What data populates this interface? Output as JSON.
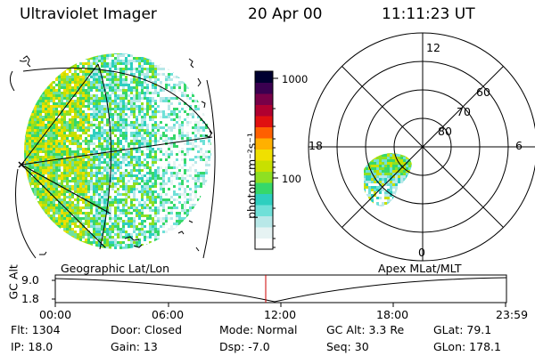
{
  "header": {
    "instrument": "Ultraviolet Imager",
    "date": "20 Apr 00",
    "time": "11:11:23 UT"
  },
  "colorbar": {
    "unit_label": "photon cm⁻²s⁻¹",
    "ticks": [
      "1000",
      "100"
    ],
    "colors": [
      "#ffffff",
      "#e6f3f3",
      "#b8e8e8",
      "#6fe0d8",
      "#2ecfbf",
      "#36d86a",
      "#8ee022",
      "#c8e000",
      "#f0e000",
      "#ffb000",
      "#ff6000",
      "#e01010",
      "#b00030",
      "#780048",
      "#3a0050",
      "#000030"
    ]
  },
  "polar_plot": {
    "lat_labels": [
      "60",
      "70",
      "80"
    ],
    "mlt_labels": {
      "top": "12",
      "left": "18",
      "right": "6",
      "bottom": "0"
    }
  },
  "strip": {
    "ylabel": "GC Alt",
    "yticks": [
      "9.0",
      "1.8"
    ],
    "left_title": "Geographic Lat/Lon",
    "right_title": "Apex MLat/MLT",
    "xticks": [
      "00:00",
      "06:00",
      "12:00",
      "18:00",
      "23:59"
    ]
  },
  "info": {
    "flt": "Flt: 1304",
    "ip": "IP: 18.0",
    "door": "Door: Closed",
    "gain": "Gain: 13",
    "mode": "Mode: Normal",
    "dsp": "Dsp:   -7.0",
    "gcalt": "GC Alt: 3.3 Re",
    "seq": "Seq: 30",
    "glat": "GLat:  79.1",
    "glon": "GLon: 178.1"
  }
}
